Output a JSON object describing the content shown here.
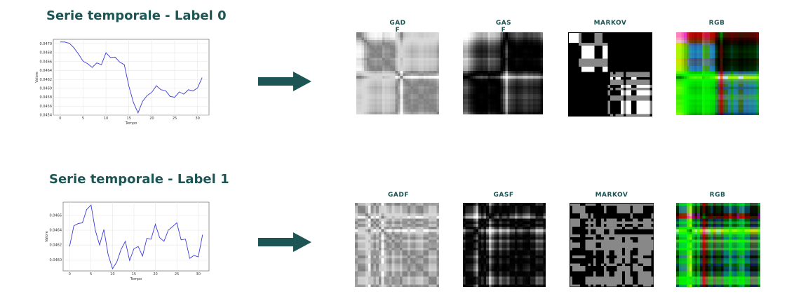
{
  "rows": [
    {
      "title": "Serie temporale - Label 0",
      "chart_data": {
        "type": "line",
        "title": "",
        "xlabel": "Tempo",
        "ylabel": "Valore",
        "xlim": [
          -1.5,
          32.5
        ],
        "ylim": [
          0.0454,
          0.0471
        ],
        "xticks": [
          0,
          5,
          10,
          15,
          20,
          25,
          30
        ],
        "yticks": [
          0.0454,
          0.0456,
          0.0458,
          0.046,
          0.0462,
          0.0464,
          0.0466,
          0.0468,
          0.047
        ],
        "ytick_labels": [
          "0.0454",
          "0.0456",
          "0.0458",
          "0.0460",
          "0.0462",
          "0.0464",
          "0.0466",
          "0.0468",
          "0.0470"
        ],
        "grid": true,
        "color": "#3a3adb",
        "x": [
          0,
          1,
          2,
          3,
          4,
          5,
          6,
          7,
          8,
          9,
          10,
          11,
          12,
          13,
          14,
          15,
          16,
          17,
          18,
          19,
          20,
          21,
          22,
          23,
          24,
          25,
          26,
          27,
          28,
          29,
          30,
          31
        ],
        "y": [
          0.04704,
          0.04704,
          0.04701,
          0.04691,
          0.04677,
          0.04661,
          0.04655,
          0.04647,
          0.04657,
          0.04653,
          0.0468,
          0.04669,
          0.0467,
          0.04659,
          0.04653,
          0.04605,
          0.04568,
          0.04545,
          0.04571,
          0.04584,
          0.04591,
          0.04606,
          0.04597,
          0.04595,
          0.04582,
          0.0458,
          0.04592,
          0.04587,
          0.04597,
          0.04594,
          0.04601,
          0.04624
        ]
      },
      "images": [
        {
          "label": "GAD\nF",
          "kind": "gadf"
        },
        {
          "label": "GAS\nF",
          "kind": "gasf"
        },
        {
          "label": "MARKOV",
          "kind": "markov"
        },
        {
          "label": "RGB",
          "kind": "rgb"
        }
      ]
    },
    {
      "title": "Serie temporale - Label 1",
      "chart_data": {
        "type": "line",
        "title": "",
        "xlabel": "Tempo",
        "ylabel": "Valore",
        "xlim": [
          -1.5,
          32.5
        ],
        "ylim": [
          0.04585,
          0.04678
        ],
        "xticks": [
          0,
          5,
          10,
          15,
          20,
          25,
          30
        ],
        "yticks": [
          0.046,
          0.0462,
          0.0464,
          0.0466
        ],
        "ytick_labels": [
          "0.0460",
          "0.0462",
          "0.0464",
          "0.0466"
        ],
        "grid": true,
        "color": "#3a3adb",
        "x": [
          0,
          1,
          2,
          3,
          4,
          5,
          6,
          7,
          8,
          9,
          10,
          11,
          12,
          13,
          14,
          15,
          16,
          17,
          18,
          19,
          20,
          21,
          22,
          23,
          24,
          25,
          26,
          27,
          28,
          29,
          30,
          31
        ],
        "y": [
          0.04618,
          0.04646,
          0.04649,
          0.0465,
          0.04668,
          0.04674,
          0.0464,
          0.0462,
          0.04641,
          0.04607,
          0.04588,
          0.04597,
          0.04614,
          0.04625,
          0.04599,
          0.04615,
          0.04618,
          0.04605,
          0.04629,
          0.04628,
          0.04648,
          0.0463,
          0.04625,
          0.0464,
          0.04645,
          0.0465,
          0.04627,
          0.04628,
          0.04602,
          0.04606,
          0.04604,
          0.04634
        ]
      },
      "images": [
        {
          "label": "GADF",
          "kind": "gadf"
        },
        {
          "label": "GASF",
          "kind": "gasf"
        },
        {
          "label": "MARKOV",
          "kind": "markov"
        },
        {
          "label": "RGB",
          "kind": "rgb"
        }
      ]
    }
  ],
  "colors": {
    "title": "#1c5554",
    "arrow": "#1c5554",
    "line": "#3a3adb"
  },
  "icons": {
    "arrow": "right-arrow-icon"
  }
}
